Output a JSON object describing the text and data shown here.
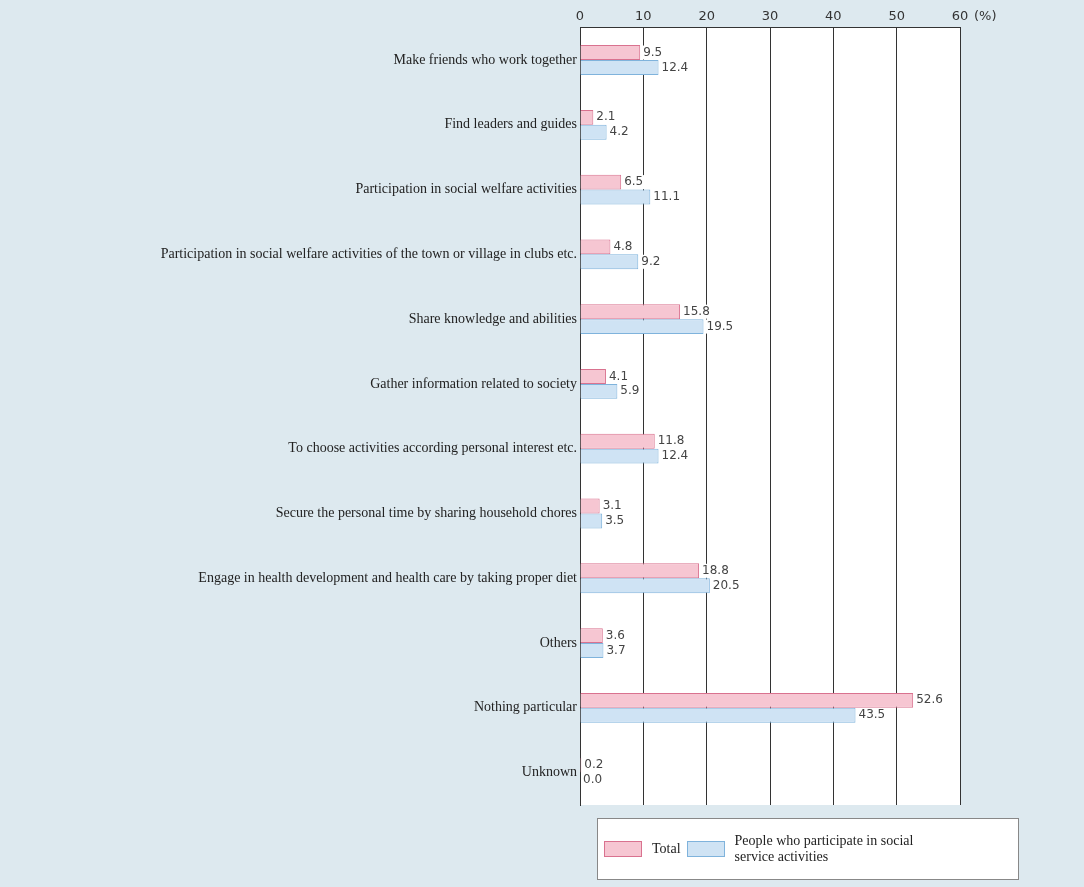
{
  "chart_data": {
    "type": "bar",
    "orientation": "horizontal",
    "xlabel": "(%)",
    "categories": [
      "Make friends who work together",
      "Find leaders and guides",
      "Participation in social welfare activities",
      "Participation in social welfare activities of the town or village in clubs etc.",
      "Share knowledge and abilities",
      "Gather information related to society",
      "To choose activities according personal interest etc.",
      "Secure the personal time by sharing household chores",
      "Engage in health development and health care by taking proper diet",
      "Others",
      "Nothing particular",
      "Unknown"
    ],
    "series": [
      {
        "name": "Total",
        "color": "#f6c6d2",
        "values": [
          9.5,
          2.1,
          6.5,
          4.8,
          15.8,
          4.1,
          11.8,
          3.1,
          18.8,
          3.6,
          52.6,
          0.2
        ],
        "value_labels": [
          "9.5",
          "2.1",
          "6.5",
          "4.8",
          "15.8",
          "4.1",
          "11.8",
          "3.1",
          "18.8",
          "3.6",
          "52.6",
          "0.2"
        ]
      },
      {
        "name": "People who participate in social service activities",
        "color": "#cfe3f4",
        "values": [
          12.4,
          4.2,
          11.1,
          9.2,
          19.5,
          5.9,
          12.4,
          3.5,
          20.5,
          3.7,
          43.5,
          0.0
        ],
        "value_labels": [
          "12.4",
          "4.2",
          "11.1",
          "9.2",
          "19.5",
          "5.9",
          "12.4",
          "3.5",
          "20.5",
          "3.7",
          "43.5",
          "0.0"
        ]
      }
    ],
    "xlim": [
      0,
      60
    ],
    "xticks": [
      0,
      10,
      20,
      30,
      40,
      50,
      60
    ],
    "grid": "x",
    "legend": "bottom",
    "data_labels": true
  }
}
